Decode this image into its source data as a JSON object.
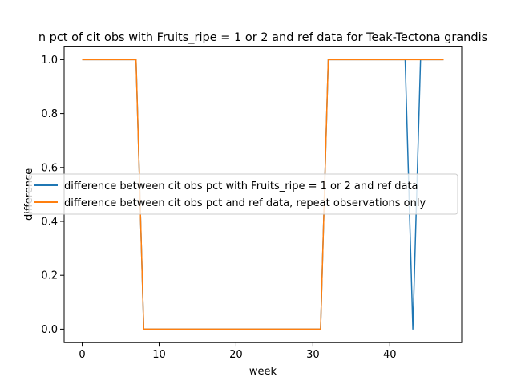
{
  "chart_data": {
    "type": "line",
    "title": "n pct of cit obs with Fruits_ripe = 1 or 2 and ref data for Teak-Tectona grandis",
    "xlabel": "week",
    "ylabel": "difference",
    "xlim": [
      -2.35,
      49.35
    ],
    "ylim": [
      -0.05,
      1.05
    ],
    "xticks": [
      0,
      10,
      20,
      30,
      40
    ],
    "yticks": [
      0.0,
      0.2,
      0.4,
      0.6,
      0.8,
      1.0
    ],
    "xtick_labels": [
      "0",
      "10",
      "20",
      "30",
      "40"
    ],
    "ytick_labels": [
      "0.0",
      "0.2",
      "0.4",
      "0.6",
      "0.8",
      "1.0"
    ],
    "grid": false,
    "legend_position": "center-left",
    "series": [
      {
        "name": "difference between cit obs pct with Fruits_ripe = 1 or 2 and ref data",
        "color": "#1f77b4",
        "x": [
          0,
          1,
          2,
          3,
          4,
          5,
          6,
          7,
          8,
          9,
          10,
          11,
          12,
          13,
          14,
          15,
          16,
          17,
          18,
          19,
          20,
          21,
          22,
          23,
          24,
          25,
          26,
          27,
          28,
          29,
          30,
          31,
          32,
          33,
          34,
          35,
          36,
          37,
          38,
          39,
          40,
          41,
          42,
          43,
          44,
          45,
          46,
          47
        ],
        "y": [
          1,
          1,
          1,
          1,
          1,
          1,
          1,
          1,
          0,
          0,
          0,
          0,
          0,
          0,
          0,
          0,
          0,
          0,
          0,
          0,
          0,
          0,
          0,
          0,
          0,
          0,
          0,
          0,
          0,
          0,
          0,
          0,
          1,
          1,
          1,
          1,
          1,
          1,
          1,
          1,
          1,
          1,
          1,
          0,
          1,
          1,
          1,
          1
        ]
      },
      {
        "name": "difference between cit obs pct and ref data, repeat observations only",
        "color": "#ff7f0e",
        "x": [
          0,
          1,
          2,
          3,
          4,
          5,
          6,
          7,
          8,
          9,
          10,
          11,
          12,
          13,
          14,
          15,
          16,
          17,
          18,
          19,
          20,
          21,
          22,
          23,
          24,
          25,
          26,
          27,
          28,
          29,
          30,
          31,
          32,
          33,
          34,
          35,
          36,
          37,
          38,
          39,
          40,
          41,
          42,
          43,
          44,
          45,
          46,
          47
        ],
        "y": [
          1,
          1,
          1,
          1,
          1,
          1,
          1,
          1,
          0,
          0,
          0,
          0,
          0,
          0,
          0,
          0,
          0,
          0,
          0,
          0,
          0,
          0,
          0,
          0,
          0,
          0,
          0,
          0,
          0,
          0,
          0,
          0,
          1,
          1,
          1,
          1,
          1,
          1,
          1,
          1,
          1,
          1,
          1,
          1,
          1,
          1,
          1,
          1
        ]
      }
    ]
  }
}
